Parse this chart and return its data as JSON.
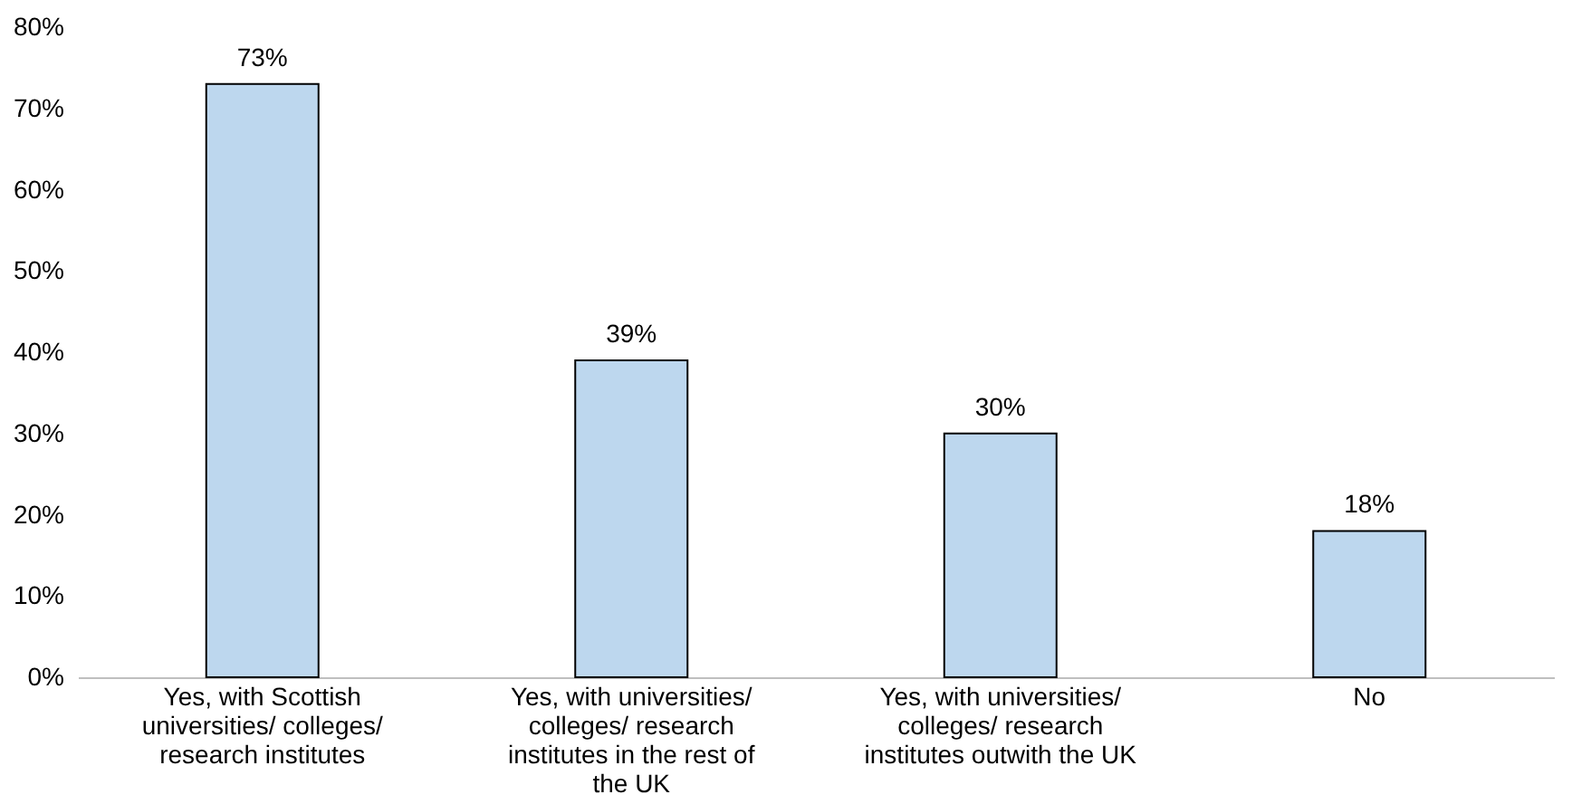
{
  "chart_data": {
    "type": "bar",
    "categories": [
      "Yes, with Scottish universities/ colleges/ research institutes",
      "Yes, with universities/ colleges/ research institutes in the rest of the UK",
      "Yes, with universities/ colleges/ research institutes outwith the UK",
      "No"
    ],
    "values": [
      73,
      39,
      30,
      18
    ],
    "value_labels": [
      "73%",
      "39%",
      "30%",
      "18%"
    ],
    "color": "#bdd7ee",
    "ylim": [
      0,
      80
    ],
    "yticks": [
      {
        "value": 0,
        "label": "0%"
      },
      {
        "value": 10,
        "label": "10%"
      },
      {
        "value": 20,
        "label": "20%"
      },
      {
        "value": 30,
        "label": "30%"
      },
      {
        "value": 40,
        "label": "40%"
      },
      {
        "value": 50,
        "label": "50%"
      },
      {
        "value": 60,
        "label": "60%"
      },
      {
        "value": 70,
        "label": "70%"
      },
      {
        "value": 80,
        "label": "80%"
      }
    ],
    "grid": false
  }
}
